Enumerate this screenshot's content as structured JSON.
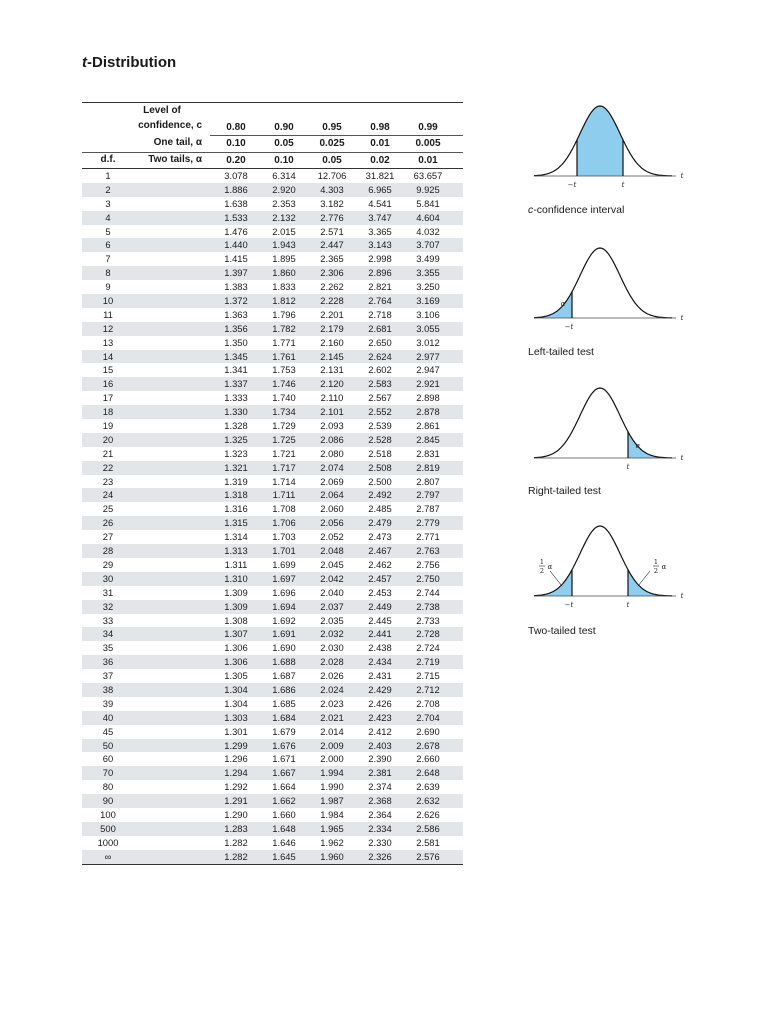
{
  "title_var": "t",
  "title_rest": "-Distribution",
  "header": {
    "level_of": "Level of",
    "confidence": "confidence, c",
    "one_tail": "One tail, α",
    "two_tails": "Two tails, α",
    "df": "d.f.",
    "confidence_levels": [
      "0.80",
      "0.90",
      "0.95",
      "0.98",
      "0.99"
    ],
    "one_tail_values": [
      "0.10",
      "0.05",
      "0.025",
      "0.01",
      "0.005"
    ],
    "two_tail_values": [
      "0.20",
      "0.10",
      "0.05",
      "0.02",
      "0.01"
    ]
  },
  "rows": [
    [
      "1",
      "3.078",
      "6.314",
      "12.706",
      "31.821",
      "63.657"
    ],
    [
      "2",
      "1.886",
      "2.920",
      "4.303",
      "6.965",
      "9.925"
    ],
    [
      "3",
      "1.638",
      "2.353",
      "3.182",
      "4.541",
      "5.841"
    ],
    [
      "4",
      "1.533",
      "2.132",
      "2.776",
      "3.747",
      "4.604"
    ],
    [
      "5",
      "1.476",
      "2.015",
      "2.571",
      "3.365",
      "4.032"
    ],
    [
      "6",
      "1.440",
      "1.943",
      "2.447",
      "3.143",
      "3.707"
    ],
    [
      "7",
      "1.415",
      "1.895",
      "2.365",
      "2.998",
      "3.499"
    ],
    [
      "8",
      "1.397",
      "1.860",
      "2.306",
      "2.896",
      "3.355"
    ],
    [
      "9",
      "1.383",
      "1.833",
      "2.262",
      "2.821",
      "3.250"
    ],
    [
      "10",
      "1.372",
      "1.812",
      "2.228",
      "2.764",
      "3.169"
    ],
    [
      "11",
      "1.363",
      "1.796",
      "2.201",
      "2.718",
      "3.106"
    ],
    [
      "12",
      "1.356",
      "1.782",
      "2.179",
      "2.681",
      "3.055"
    ],
    [
      "13",
      "1.350",
      "1.771",
      "2.160",
      "2.650",
      "3.012"
    ],
    [
      "14",
      "1.345",
      "1.761",
      "2.145",
      "2.624",
      "2.977"
    ],
    [
      "15",
      "1.341",
      "1.753",
      "2.131",
      "2.602",
      "2.947"
    ],
    [
      "16",
      "1.337",
      "1.746",
      "2.120",
      "2.583",
      "2.921"
    ],
    [
      "17",
      "1.333",
      "1.740",
      "2.110",
      "2.567",
      "2.898"
    ],
    [
      "18",
      "1.330",
      "1.734",
      "2.101",
      "2.552",
      "2.878"
    ],
    [
      "19",
      "1.328",
      "1.729",
      "2.093",
      "2.539",
      "2.861"
    ],
    [
      "20",
      "1.325",
      "1.725",
      "2.086",
      "2.528",
      "2.845"
    ],
    [
      "21",
      "1.323",
      "1.721",
      "2.080",
      "2.518",
      "2.831"
    ],
    [
      "22",
      "1.321",
      "1.717",
      "2.074",
      "2.508",
      "2.819"
    ],
    [
      "23",
      "1.319",
      "1.714",
      "2.069",
      "2.500",
      "2.807"
    ],
    [
      "24",
      "1.318",
      "1.711",
      "2.064",
      "2.492",
      "2.797"
    ],
    [
      "25",
      "1.316",
      "1.708",
      "2.060",
      "2.485",
      "2.787"
    ],
    [
      "26",
      "1.315",
      "1.706",
      "2.056",
      "2.479",
      "2.779"
    ],
    [
      "27",
      "1.314",
      "1.703",
      "2.052",
      "2.473",
      "2.771"
    ],
    [
      "28",
      "1.313",
      "1.701",
      "2.048",
      "2.467",
      "2.763"
    ],
    [
      "29",
      "1.311",
      "1.699",
      "2.045",
      "2.462",
      "2.756"
    ],
    [
      "30",
      "1.310",
      "1.697",
      "2.042",
      "2.457",
      "2.750"
    ],
    [
      "31",
      "1.309",
      "1.696",
      "2.040",
      "2.453",
      "2.744"
    ],
    [
      "32",
      "1.309",
      "1.694",
      "2.037",
      "2.449",
      "2.738"
    ],
    [
      "33",
      "1.308",
      "1.692",
      "2.035",
      "2.445",
      "2.733"
    ],
    [
      "34",
      "1.307",
      "1.691",
      "2.032",
      "2.441",
      "2.728"
    ],
    [
      "35",
      "1.306",
      "1.690",
      "2.030",
      "2.438",
      "2.724"
    ],
    [
      "36",
      "1.306",
      "1.688",
      "2.028",
      "2.434",
      "2.719"
    ],
    [
      "37",
      "1.305",
      "1.687",
      "2.026",
      "2.431",
      "2.715"
    ],
    [
      "38",
      "1.304",
      "1.686",
      "2.024",
      "2.429",
      "2.712"
    ],
    [
      "39",
      "1.304",
      "1.685",
      "2.023",
      "2.426",
      "2.708"
    ],
    [
      "40",
      "1.303",
      "1.684",
      "2.021",
      "2.423",
      "2.704"
    ],
    [
      "45",
      "1.301",
      "1.679",
      "2.014",
      "2.412",
      "2.690"
    ],
    [
      "50",
      "1.299",
      "1.676",
      "2.009",
      "2.403",
      "2.678"
    ],
    [
      "60",
      "1.296",
      "1.671",
      "2.000",
      "2.390",
      "2.660"
    ],
    [
      "70",
      "1.294",
      "1.667",
      "1.994",
      "2.381",
      "2.648"
    ],
    [
      "80",
      "1.292",
      "1.664",
      "1.990",
      "2.374",
      "2.639"
    ],
    [
      "90",
      "1.291",
      "1.662",
      "1.987",
      "2.368",
      "2.632"
    ],
    [
      "100",
      "1.290",
      "1.660",
      "1.984",
      "2.364",
      "2.626"
    ],
    [
      "500",
      "1.283",
      "1.648",
      "1.965",
      "2.334",
      "2.586"
    ],
    [
      "1000",
      "1.282",
      "1.646",
      "1.962",
      "2.330",
      "2.581"
    ],
    [
      "∞",
      "1.282",
      "1.645",
      "1.960",
      "2.326",
      "2.576"
    ]
  ],
  "figures": {
    "confidence_caption_var": "c",
    "confidence_caption_rest": "-confidence interval",
    "left_caption": "Left-tailed test",
    "right_caption": "Right-tailed test",
    "two_caption": "Two-tailed test",
    "t_label": "t",
    "neg_t_label": "−t",
    "alpha": "α",
    "half": "1",
    "half_den": "2"
  },
  "colors": {
    "fill": "#8fcdee",
    "curve": "#111111",
    "row_shade": "#e3e6e8"
  }
}
